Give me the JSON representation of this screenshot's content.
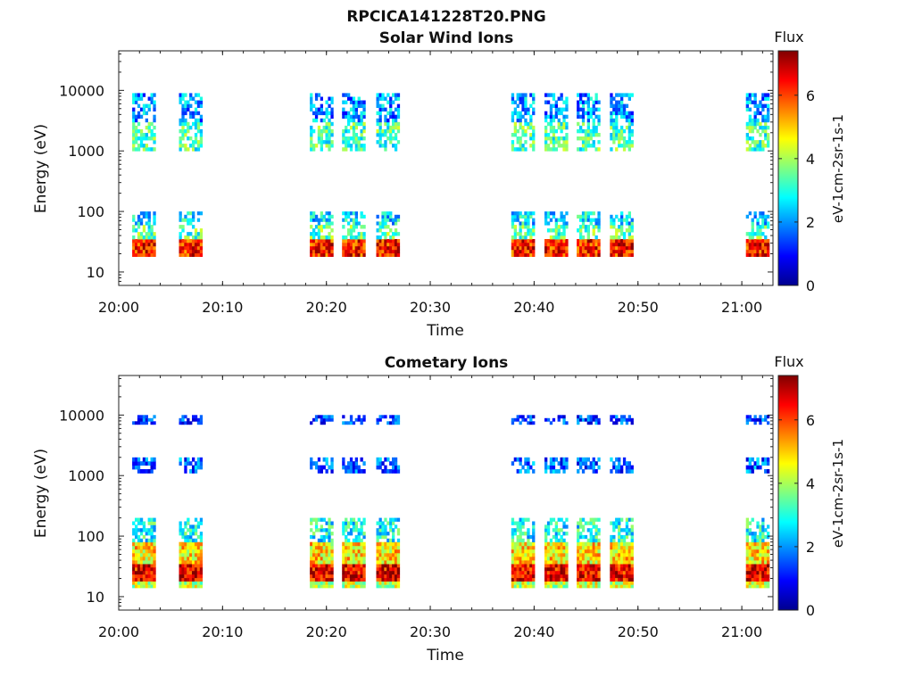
{
  "figure": {
    "title": "RPCICA141228T20.PNG"
  },
  "colormap": [
    "#00008f",
    "#0000ff",
    "#0080ff",
    "#00ffff",
    "#80ff80",
    "#ffff00",
    "#ff8000",
    "#ff0000",
    "#800000"
  ],
  "chart_data": [
    {
      "type": "heatmap",
      "title": "Solar Wind Ions",
      "xlabel": "Time",
      "ylabel": "Energy (eV)",
      "xlim": [
        0,
        63
      ],
      "xticks": [
        0,
        10,
        20,
        30,
        40,
        50,
        60
      ],
      "xticklabels": [
        "20:00",
        "20:10",
        "20:20",
        "20:30",
        "20:40",
        "20:50",
        "21:00"
      ],
      "yscale": "log",
      "ylim": [
        6,
        45000
      ],
      "yticks": [
        10,
        100,
        1000,
        10000
      ],
      "yticklabels": [
        "10",
        "100",
        "1000",
        "10000"
      ],
      "colorbar": {
        "label_top": "Flux",
        "label_side": "eV-1cm-2sr-1s-1",
        "range": [
          0,
          7.4
        ],
        "ticks": [
          0,
          2,
          4,
          6
        ],
        "ticklabels": [
          "0",
          "2",
          "4",
          "6"
        ]
      },
      "sweeps_start_minutes": [
        1.3,
        5.8,
        18.4,
        21.5,
        24.8,
        37.8,
        41.0,
        44.1,
        47.3,
        60.4
      ],
      "sweep_width_minutes": 2.2,
      "bands": [
        {
          "energy_min": 18,
          "energy_max": 35,
          "flux": 6.3
        },
        {
          "energy_min": 35,
          "energy_max": 60,
          "flux": 3.4
        },
        {
          "energy_min": 60,
          "energy_max": 100,
          "flux": 2.6
        },
        {
          "energy_min": 1000,
          "energy_max": 3000,
          "flux": 3.3
        },
        {
          "energy_min": 3000,
          "energy_max": 9000,
          "flux": 2.0
        }
      ]
    },
    {
      "type": "heatmap",
      "title": "Cometary Ions",
      "xlabel": "Time",
      "ylabel": "Energy (eV)",
      "xlim": [
        0,
        63
      ],
      "xticks": [
        0,
        10,
        20,
        30,
        40,
        50,
        60
      ],
      "xticklabels": [
        "20:00",
        "20:10",
        "20:20",
        "20:30",
        "20:40",
        "20:50",
        "21:00"
      ],
      "yscale": "log",
      "ylim": [
        6,
        45000
      ],
      "yticks": [
        10,
        100,
        1000,
        10000
      ],
      "yticklabels": [
        "10",
        "100",
        "1000",
        "10000"
      ],
      "colorbar": {
        "label_top": "Flux",
        "label_side": "eV-1cm-2sr-1s-1",
        "range": [
          0,
          7.4
        ],
        "ticks": [
          0,
          2,
          4,
          6
        ],
        "ticklabels": [
          "0",
          "2",
          "4",
          "6"
        ]
      },
      "sweeps_start_minutes": [
        1.3,
        5.8,
        18.4,
        21.5,
        24.8,
        37.8,
        41.0,
        44.1,
        47.3,
        60.4
      ],
      "sweep_width_minutes": 2.2,
      "bands": [
        {
          "energy_min": 14,
          "energy_max": 18,
          "flux": 4.2
        },
        {
          "energy_min": 18,
          "energy_max": 35,
          "flux": 6.6
        },
        {
          "energy_min": 35,
          "energy_max": 80,
          "flux": 4.8
        },
        {
          "energy_min": 80,
          "energy_max": 200,
          "flux": 2.9
        },
        {
          "energy_min": 1100,
          "energy_max": 2000,
          "flux": 1.6
        },
        {
          "energy_min": 7000,
          "energy_max": 10000,
          "flux": 1.3
        }
      ]
    }
  ]
}
